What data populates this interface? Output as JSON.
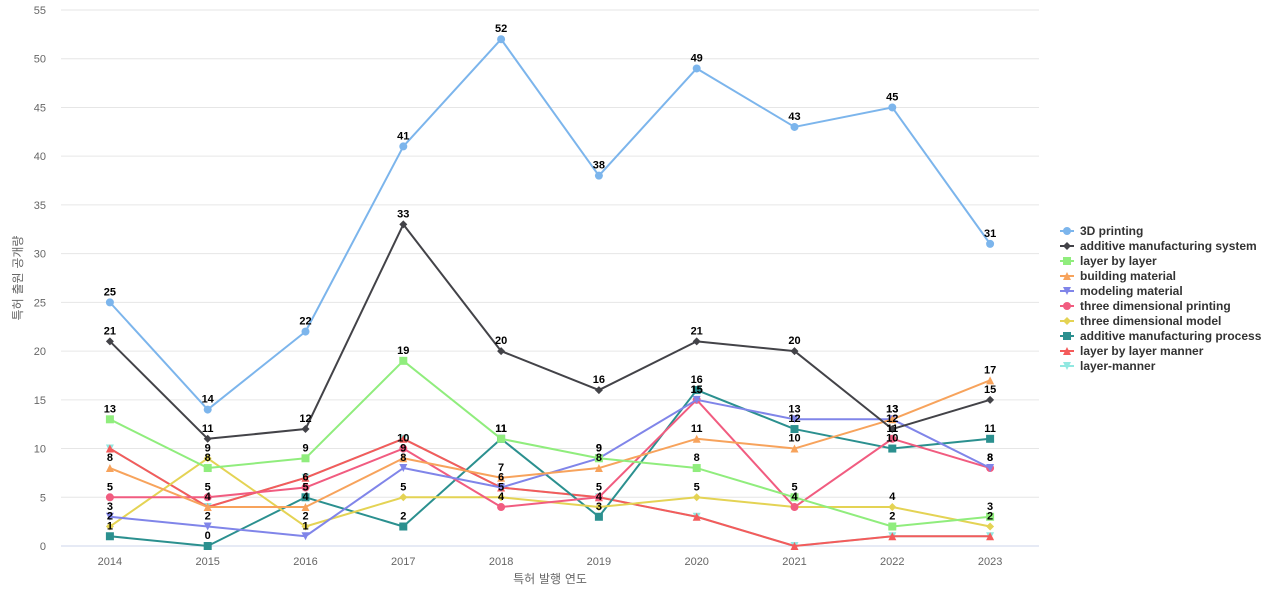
{
  "chart_data": {
    "type": "line",
    "title": "",
    "xlabel": "특허 발행 연도",
    "ylabel": "특허 출원 공개량",
    "ylim": [
      0,
      55
    ],
    "yticks": [
      0,
      5,
      10,
      15,
      20,
      25,
      30,
      35,
      40,
      45,
      50,
      55
    ],
    "grid": true,
    "legend_position": "right",
    "categories": [
      "2014",
      "2015",
      "2016",
      "2017",
      "2018",
      "2019",
      "2020",
      "2021",
      "2022",
      "2023"
    ],
    "series": [
      {
        "name": "3D printing",
        "color": "#7cb5ec",
        "marker": "circle",
        "values": [
          25,
          14,
          22,
          41,
          52,
          38,
          49,
          43,
          45,
          31
        ]
      },
      {
        "name": "additive manufacturing system",
        "color": "#434348",
        "marker": "diamond",
        "values": [
          21,
          11,
          12,
          33,
          20,
          16,
          21,
          20,
          12,
          15
        ]
      },
      {
        "name": "layer by layer",
        "color": "#90ed7d",
        "marker": "square",
        "values": [
          13,
          8,
          9,
          19,
          11,
          9,
          8,
          5,
          2,
          3
        ]
      },
      {
        "name": "building material",
        "color": "#f7a35c",
        "marker": "triangle",
        "values": [
          8,
          4,
          4,
          9,
          7,
          8,
          11,
          10,
          13,
          17
        ]
      },
      {
        "name": "modeling material",
        "color": "#8085e9",
        "marker": "triangle-down",
        "values": [
          3,
          2,
          1,
          8,
          6,
          9,
          15,
          13,
          13,
          8
        ]
      },
      {
        "name": "three dimensional printing",
        "color": "#f15c80",
        "marker": "circle",
        "values": [
          5,
          5,
          6,
          10,
          4,
          5,
          15,
          4,
          11,
          8
        ]
      },
      {
        "name": "three dimensional model",
        "color": "#e4d354",
        "marker": "diamond",
        "values": [
          2,
          9,
          2,
          5,
          5,
          4,
          5,
          4,
          4,
          2
        ]
      },
      {
        "name": "additive manufacturing process",
        "color": "#2b908f",
        "marker": "square",
        "values": [
          1,
          0,
          5,
          2,
          11,
          3,
          16,
          12,
          10,
          11
        ]
      },
      {
        "name": "layer by layer manner",
        "color": "#f45b5b",
        "marker": "triangle",
        "values": [
          10,
          4,
          7,
          11,
          6,
          5,
          3,
          0,
          1,
          1
        ]
      },
      {
        "name": "layer-manner",
        "color": "#91e8e1",
        "marker": "triangle-down",
        "values": [
          10,
          4,
          7,
          11,
          6,
          5,
          3,
          0,
          1,
          1
        ]
      }
    ],
    "data_labels": [
      {
        "series": 0,
        "points": [
          0,
          1,
          2,
          3,
          4,
          5,
          6,
          7,
          8,
          9
        ]
      },
      {
        "series": 1,
        "points": [
          0,
          1,
          2,
          3,
          4,
          5,
          6,
          7,
          8,
          9
        ]
      },
      {
        "series": 2,
        "points": [
          0,
          1,
          2,
          3,
          4,
          5,
          6,
          7,
          8,
          9
        ]
      },
      {
        "series": 3,
        "points": [
          0,
          1,
          2,
          3,
          4,
          5,
          6,
          7,
          8,
          9
        ]
      },
      {
        "series": 4,
        "points": [
          0,
          1,
          2,
          3,
          4,
          5,
          6,
          7,
          8,
          9
        ]
      },
      {
        "series": 5,
        "points": [
          0,
          1,
          2,
          3,
          4,
          5,
          6,
          7,
          8,
          9
        ]
      },
      {
        "series": 6,
        "points": [
          0,
          1,
          2,
          3,
          4,
          5,
          6,
          7,
          8,
          9
        ]
      },
      {
        "series": 7,
        "points": [
          0,
          1,
          2,
          3,
          4,
          5,
          6,
          7,
          8,
          9
        ]
      }
    ]
  }
}
